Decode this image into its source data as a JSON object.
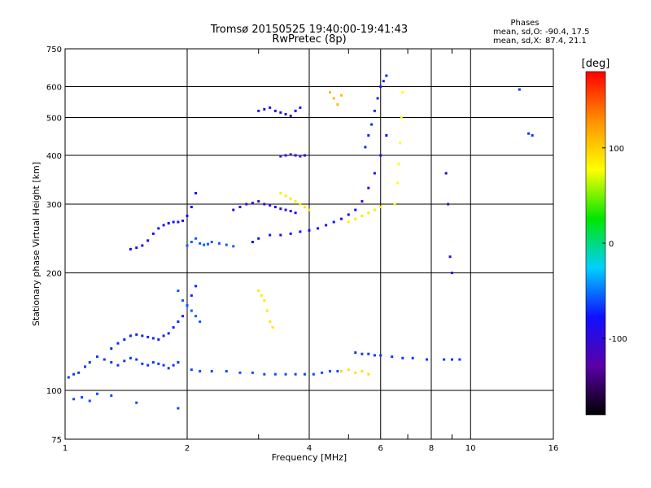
{
  "chart_data": {
    "type": "scatter",
    "title": "Tromsø 20150525 19:40:00-19:41:43",
    "subtitle": "RwPretec (8p)",
    "xlabel": "Frequency [MHz]",
    "ylabel": "Stationary phase Virtual Height [km]",
    "x_scale": "log",
    "y_scale": "log",
    "xlim": [
      1,
      16
    ],
    "ylim": [
      75,
      750
    ],
    "x_ticks": [
      1,
      2,
      4,
      6,
      8,
      10,
      16
    ],
    "x_minor_ticks": [
      3,
      5,
      7,
      9
    ],
    "y_ticks": [
      75,
      100,
      200,
      300,
      400,
      500,
      600,
      750
    ],
    "grid": true,
    "stats_header": "Phases",
    "stats": [
      {
        "label": "mean, sd,O:",
        "values": "-90.4, 17.5"
      },
      {
        "label": "mean, sd,X:",
        "values": "87.4, 21.1"
      }
    ],
    "colorbar": {
      "label": "[deg]",
      "range": [
        -180,
        180
      ],
      "ticks": [
        100,
        0,
        -100
      ],
      "colors": [
        "#000000",
        "#5a00a8",
        "#1010ff",
        "#00d0ff",
        "#00e600",
        "#ffff00",
        "#ff9000",
        "#ff0000"
      ]
    },
    "series": [
      {
        "phase": -90,
        "x": [
          1.02,
          1.05,
          1.08,
          1.12,
          1.15,
          1.2,
          1.25,
          1.3,
          1.35,
          1.4,
          1.45,
          1.5,
          1.55,
          1.6,
          1.65,
          1.7,
          1.75,
          1.8,
          1.85,
          1.9
        ],
        "y": [
          108,
          110,
          111,
          115,
          118,
          122,
          120,
          118,
          116,
          119,
          121,
          120,
          117,
          116,
          118,
          117,
          116,
          114,
          116,
          118
        ]
      },
      {
        "phase": -95,
        "x": [
          1.3,
          1.35,
          1.4,
          1.45,
          1.5,
          1.55,
          1.6,
          1.65,
          1.7,
          1.75,
          1.8,
          1.85,
          1.9,
          1.95,
          2.0,
          2.05,
          2.1
        ],
        "y": [
          128,
          132,
          135,
          138,
          139,
          138,
          137,
          136,
          135,
          138,
          140,
          145,
          150,
          155,
          165,
          175,
          185
        ]
      },
      {
        "phase": -85,
        "x": [
          2.05,
          2.15,
          2.3,
          2.5,
          2.7,
          2.9,
          3.1,
          3.3,
          3.5,
          3.7,
          3.9,
          4.1,
          4.3,
          4.5,
          4.7
        ],
        "y": [
          113,
          112,
          112,
          112,
          111,
          111,
          110,
          110,
          110,
          110,
          110,
          110,
          111,
          112,
          112
        ]
      },
      {
        "phase": -100,
        "x": [
          1.45,
          1.5,
          1.55,
          1.6,
          1.65,
          1.7,
          1.75,
          1.8,
          1.85,
          1.9,
          1.95,
          2.0,
          2.05,
          2.1
        ],
        "y": [
          230,
          232,
          235,
          242,
          252,
          260,
          265,
          268,
          270,
          270,
          272,
          280,
          295,
          320
        ]
      },
      {
        "phase": -100,
        "x": [
          2.9,
          3.0,
          3.2,
          3.4,
          3.6,
          3.8,
          4.0,
          4.2,
          4.4,
          4.6,
          4.8,
          5.0,
          5.2,
          5.4,
          5.6,
          5.8,
          6.0,
          6.2
        ],
        "y": [
          240,
          245,
          250,
          250,
          252,
          255,
          257,
          260,
          265,
          270,
          275,
          282,
          290,
          305,
          330,
          360,
          400,
          450
        ]
      },
      {
        "phase": -110,
        "x": [
          2.6,
          2.7,
          2.8,
          2.9,
          3.0,
          3.1,
          3.2,
          3.3,
          3.4,
          3.5,
          3.6,
          3.7
        ],
        "y": [
          290,
          295,
          300,
          302,
          305,
          300,
          298,
          295,
          292,
          290,
          288,
          285
        ]
      },
      {
        "phase": -105,
        "x": [
          3.0,
          3.1,
          3.2,
          3.3,
          3.4,
          3.5,
          3.6,
          3.7,
          3.8
        ],
        "y": [
          520,
          525,
          530,
          520,
          515,
          510,
          505,
          520,
          530
        ]
      },
      {
        "phase": -80,
        "x": [
          2.0,
          2.05,
          2.1,
          2.15,
          2.2,
          2.25,
          2.3,
          2.4,
          2.5,
          2.6
        ],
        "y": [
          235,
          240,
          245,
          238,
          236,
          237,
          240,
          238,
          236,
          234
        ]
      },
      {
        "phase": -95,
        "x": [
          5.5,
          5.6,
          5.7,
          5.8,
          5.9,
          6.0,
          6.1,
          6.2
        ],
        "y": [
          420,
          450,
          480,
          520,
          560,
          600,
          620,
          640
        ]
      },
      {
        "phase": 100,
        "x": [
          3.4,
          3.5,
          3.6,
          3.7,
          3.8,
          3.9,
          4.0
        ],
        "y": [
          320,
          315,
          310,
          305,
          300,
          295,
          290
        ]
      },
      {
        "phase": 100,
        "x": [
          3.0,
          3.05,
          3.1,
          3.15,
          3.2,
          3.25
        ],
        "y": [
          180,
          175,
          170,
          160,
          150,
          145
        ]
      },
      {
        "phase": 90,
        "x": [
          6.5,
          6.6,
          6.65,
          6.7,
          6.75,
          6.8
        ],
        "y": [
          300,
          340,
          380,
          430,
          500,
          580
        ]
      },
      {
        "phase": 100,
        "x": [
          5.0,
          5.2,
          5.4,
          5.6,
          5.8,
          6.0
        ],
        "y": [
          270,
          275,
          280,
          285,
          290,
          295
        ]
      },
      {
        "phase": 105,
        "x": [
          4.8,
          5.0,
          5.2,
          5.4,
          5.6
        ],
        "y": [
          112,
          113,
          111,
          112,
          110
        ]
      },
      {
        "phase": -90,
        "x": [
          5.2,
          5.4,
          5.6,
          5.8,
          6.0,
          6.4,
          6.8,
          7.2,
          7.8,
          8.6,
          9.0,
          9.4
        ],
        "y": [
          125,
          124,
          124,
          123,
          123,
          122,
          121,
          121,
          120,
          120,
          120,
          120
        ]
      },
      {
        "phase": -80,
        "x": [
          1.9,
          1.95,
          2.0,
          2.05,
          2.1,
          2.15
        ],
        "y": [
          180,
          170,
          165,
          160,
          155,
          150
        ]
      },
      {
        "phase": -115,
        "x": [
          8.7,
          8.8,
          8.9,
          9.0
        ],
        "y": [
          360,
          300,
          220,
          200
        ]
      },
      {
        "phase": -85,
        "x": [
          1.05,
          1.1,
          1.15,
          1.2,
          1.3,
          1.5,
          1.9
        ],
        "y": [
          95,
          96,
          94,
          98,
          97,
          93,
          90
        ]
      },
      {
        "phase": -120,
        "x": [
          3.4,
          3.5,
          3.6,
          3.7,
          3.8,
          3.9
        ],
        "y": [
          398,
          400,
          402,
          400,
          398,
          400
        ]
      },
      {
        "phase": 120,
        "x": [
          4.5,
          4.6,
          4.7,
          4.8
        ],
        "y": [
          580,
          560,
          540,
          570
        ]
      },
      {
        "phase": -90,
        "x": [
          13.2,
          13.9,
          14.2
        ],
        "y": [
          590,
          455,
          450
        ]
      }
    ]
  }
}
